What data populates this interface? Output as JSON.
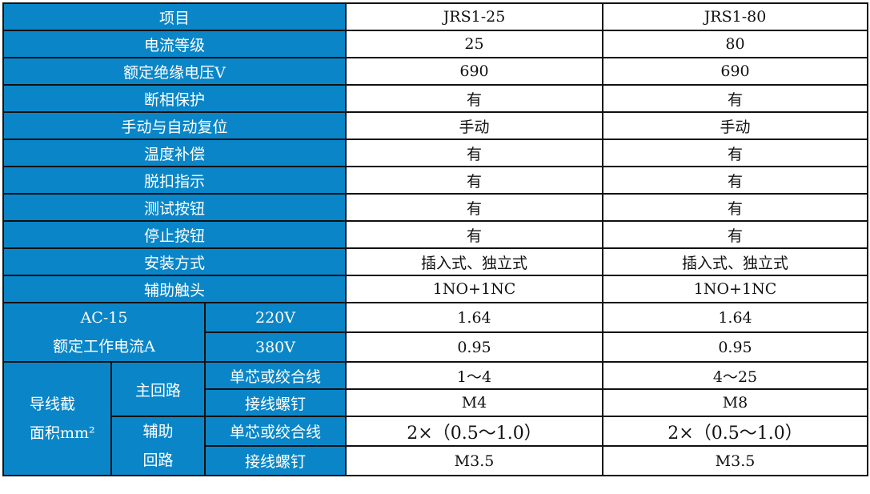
{
  "header": {
    "item": "项目",
    "models": [
      "JRS1-25",
      "JRS1-80"
    ]
  },
  "rows": [
    {
      "label": "电流等级",
      "values": [
        "25",
        "80"
      ]
    },
    {
      "label": "额定绝缘电压V",
      "values": [
        "690",
        "690"
      ]
    },
    {
      "label": "断相保护",
      "values": [
        "有",
        "有"
      ]
    },
    {
      "label": "手动与自动复位",
      "values": [
        "手动",
        "手动"
      ]
    },
    {
      "label": "温度补偿",
      "values": [
        "有",
        "有"
      ]
    },
    {
      "label": "脱扣指示",
      "values": [
        "有",
        "有"
      ]
    },
    {
      "label": "测试按钮",
      "values": [
        "有",
        "有"
      ]
    },
    {
      "label": "停止按钮",
      "values": [
        "有",
        "有"
      ]
    },
    {
      "label": "安装方式",
      "values": [
        "插入式、独立式",
        "插入式、独立式"
      ]
    },
    {
      "label": "辅助触头",
      "values": [
        "1NO+1NC",
        "1NO+1NC"
      ]
    }
  ],
  "ac15": {
    "label_line1": "AC-15",
    "label_line2": "额定工作电流A",
    "rows": [
      {
        "voltage": "220V",
        "values": [
          "1.64",
          "1.64"
        ]
      },
      {
        "voltage": "380V",
        "values": [
          "0.95",
          "0.95"
        ]
      }
    ]
  },
  "wire": {
    "label_line1": "导线截",
    "label_line2": "面积mm²",
    "main": {
      "label": "主回路",
      "rows": [
        {
          "label": "单芯或绞合线",
          "values": [
            "1～4",
            "4～25"
          ]
        },
        {
          "label": "接线螺钉",
          "values": [
            "M4",
            "M8"
          ]
        }
      ]
    },
    "aux": {
      "label_line1": "辅助",
      "label_line2": "回路",
      "rows": [
        {
          "label": "单芯或绞合线",
          "values": [
            "2×（0.5～1.0）",
            "2×（0.5～1.0）"
          ]
        },
        {
          "label": "接线螺钉",
          "values": [
            "M3.5",
            "M3.5"
          ]
        }
      ]
    }
  },
  "colors": {
    "header_blue": "#0a86c8"
  }
}
